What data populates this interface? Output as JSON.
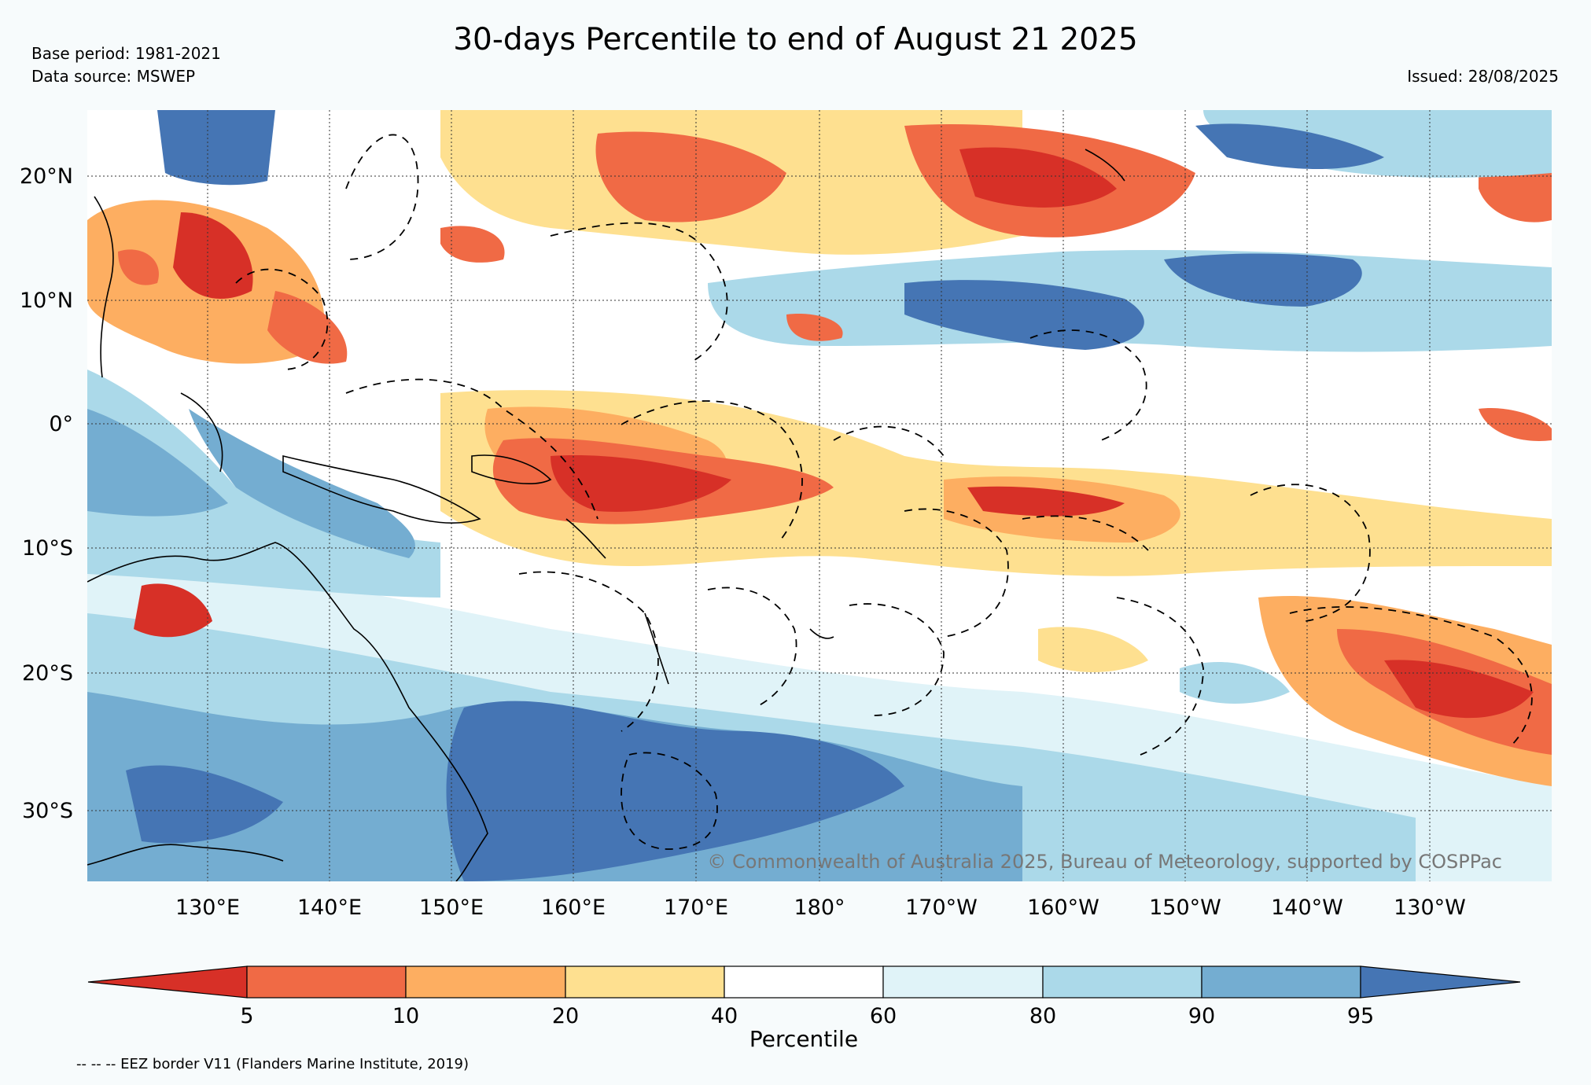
{
  "header": {
    "title": "30-days Percentile to end of August 21 2025",
    "base_period": "Base period: 1981-2021",
    "data_source": "Data source: MSWEP",
    "issued": "Issued: 28/08/2025"
  },
  "map": {
    "lat_labels": [
      "20°N",
      "10°N",
      "0°",
      "10°S",
      "20°S",
      "30°S"
    ],
    "lon_labels": [
      "130°E",
      "140°E",
      "150°E",
      "160°E",
      "170°E",
      "180°",
      "170°W",
      "160°W",
      "150°W",
      "140°W",
      "130°W"
    ],
    "copyright": "© Commonwealth of Australia 2025, Bureau of Meteorology, supported by COSPPac",
    "eez_note": "-- -- -- EEZ border V11 (Flanders Marine Institute, 2019)"
  },
  "colorbar": {
    "title": "Percentile",
    "ticks": [
      "5",
      "10",
      "20",
      "40",
      "60",
      "80",
      "90",
      "95"
    ],
    "colors": [
      "#d73027",
      "#f06a45",
      "#fdae61",
      "#fee090",
      "#ffffff",
      "#e0f3f8",
      "#abd9e9",
      "#74add1",
      "#4575b4"
    ]
  }
}
